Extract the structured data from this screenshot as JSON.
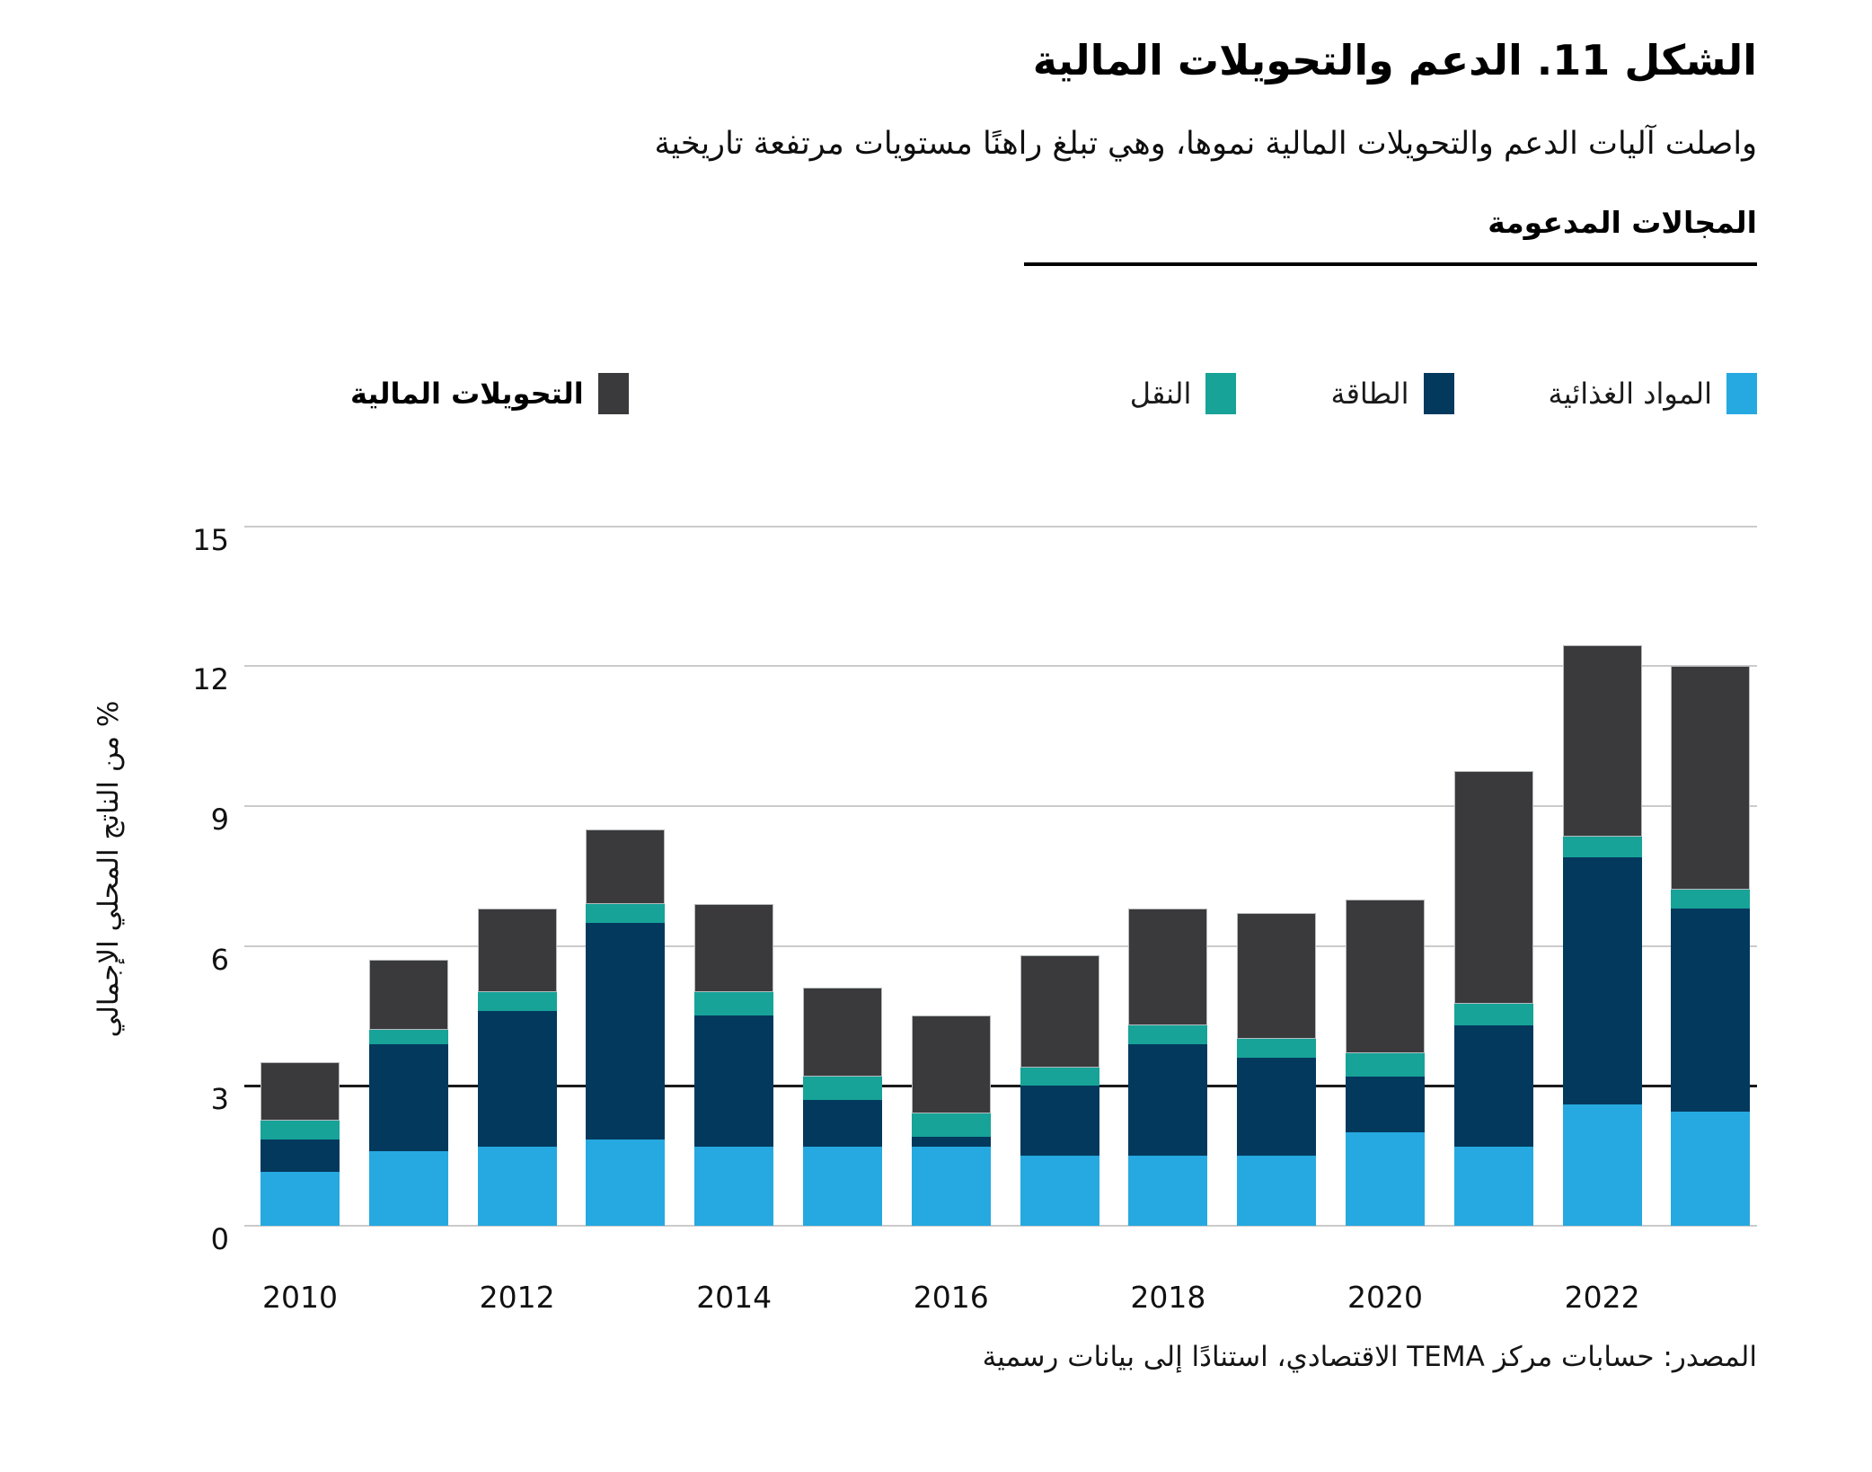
{
  "header": {
    "title": "الشكل 11. الدعم والتحويلات المالية",
    "subtitle": "واصلت آليات الدعم والتحويلات المالية نموها، وهي تبلغ راهنًا مستويات مرتفعة تاريخية"
  },
  "legend": {
    "section_title": "المجالات المدعومة",
    "supported_items": [
      {
        "key": "food",
        "label": "المواد الغذائية"
      },
      {
        "key": "energy",
        "label": "الطاقة"
      },
      {
        "key": "transport",
        "label": "النقل"
      }
    ],
    "transfers": {
      "key": "transfers",
      "label": "التحويلات المالية"
    }
  },
  "axis": {
    "y_title": "% من الناتج المحلي الإجمالي"
  },
  "source": {
    "text": "المصدر: حسابات مركز TEMA الاقتصادي، استنادًا إلى بيانات رسمية"
  },
  "chart_data": {
    "type": "bar",
    "stacked": true,
    "title": "الشكل 11. الدعم والتحويلات المالية",
    "ylabel": "% من الناتج المحلي الإجمالي",
    "ylim": [
      0,
      15
    ],
    "yticks": [
      0,
      3,
      6,
      9,
      12,
      15
    ],
    "baseline_highlight_y": 3,
    "grid": "horizontal",
    "legend_position": "top",
    "categories": [
      2010,
      2011,
      2012,
      2013,
      2014,
      2015,
      2016,
      2017,
      2018,
      2019,
      2020,
      2021,
      2022,
      2023
    ],
    "x_tick_labels": [
      "2010",
      "2012",
      "2014",
      "2016",
      "2018",
      "2020",
      "2022"
    ],
    "x_tick_indices": [
      0,
      2,
      4,
      6,
      8,
      10,
      12
    ],
    "series": [
      {
        "key": "food",
        "name": "المواد الغذائية",
        "color": "#25A9E0",
        "values": [
          1.15,
          1.6,
          1.7,
          1.85,
          1.7,
          1.7,
          1.7,
          1.5,
          1.5,
          1.5,
          2.0,
          1.7,
          2.6,
          2.45
        ]
      },
      {
        "key": "energy",
        "name": "الطاقة",
        "color": "#04395E",
        "values": [
          0.7,
          2.3,
          2.9,
          4.65,
          2.8,
          1.0,
          0.2,
          1.5,
          2.4,
          2.1,
          1.2,
          2.6,
          5.3,
          4.35
        ]
      },
      {
        "key": "transport",
        "name": "النقل",
        "color": "#17A398",
        "values": [
          0.4,
          0.3,
          0.4,
          0.4,
          0.5,
          0.5,
          0.5,
          0.4,
          0.4,
          0.4,
          0.5,
          0.45,
          0.45,
          0.4
        ]
      },
      {
        "key": "transfers",
        "name": "التحويلات المالية",
        "color": "#3A3A3C",
        "values": [
          1.25,
          1.5,
          1.8,
          1.6,
          1.9,
          1.9,
          2.1,
          2.4,
          2.5,
          2.7,
          3.3,
          5.0,
          4.1,
          4.8
        ]
      }
    ],
    "totals": [
      3.5,
      5.7,
      6.8,
      8.5,
      6.9,
      5.1,
      4.5,
      5.8,
      6.8,
      6.7,
      7.0,
      9.75,
      12.45,
      12.0
    ],
    "colors": {
      "grid": "#CBCBCB",
      "baseline": "#1A1A1A",
      "background": "#FFFFFF"
    }
  }
}
